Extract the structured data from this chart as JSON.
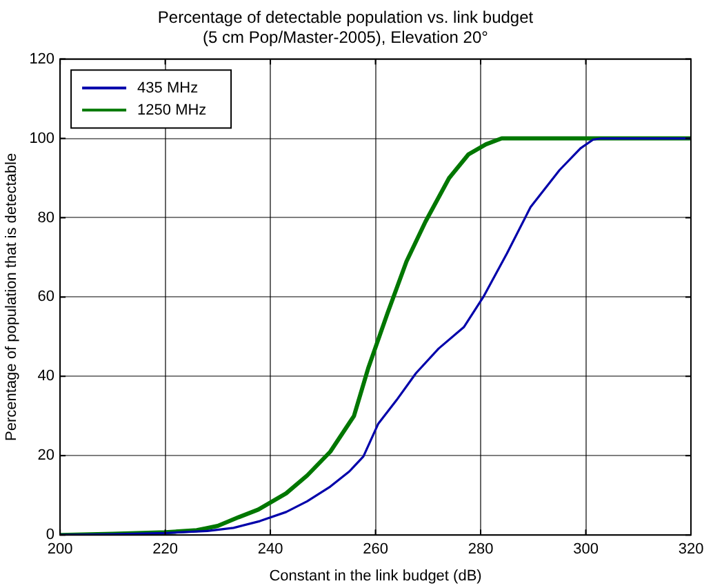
{
  "chart_data": {
    "type": "line",
    "title": [
      "Percentage of detectable population vs. link budget",
      "(5 cm Pop/Master-2005), Elevation 20°"
    ],
    "xlabel": "Constant in the link budget (dB)",
    "ylabel": "Percentage of population that is detectable",
    "xlim": [
      200,
      320
    ],
    "xticks": [
      200,
      220,
      240,
      260,
      280,
      300,
      320
    ],
    "ylim": [
      0,
      120
    ],
    "yticks": [
      0,
      20,
      40,
      60,
      80,
      100,
      120
    ],
    "grid": true,
    "legend": "top left",
    "line_style": "solid",
    "marker": "none",
    "series": [
      {
        "name": "435 MHz",
        "color": "#0000aa",
        "x": [
          200,
          210,
          220,
          228,
          233,
          238,
          243,
          247,
          251.4,
          255,
          257.7,
          260.5,
          264,
          267.7,
          272,
          276.8,
          280.5,
          285,
          289.5,
          295,
          299,
          301.4,
          303,
          310,
          320
        ],
        "values": [
          0,
          0.2,
          0.5,
          1,
          1.8,
          3.5,
          5.8,
          8.5,
          12.2,
          16,
          19.8,
          28,
          34,
          40.8,
          47,
          52.4,
          60,
          71,
          82.7,
          92,
          97.5,
          99.7,
          100,
          100,
          100
        ]
      },
      {
        "name": "1250 MHz",
        "color": "#007700",
        "x": [
          200,
          210,
          220,
          226,
          230,
          234,
          237.7,
          243,
          247,
          251.4,
          255.9,
          258.6,
          262.3,
          265.9,
          269.5,
          274,
          277.7,
          281,
          284,
          290,
          300,
          310,
          320
        ],
        "values": [
          0,
          0.3,
          0.7,
          1.2,
          2.3,
          4.5,
          6.4,
          10.5,
          15,
          21,
          30,
          42,
          56,
          69,
          79,
          90,
          96,
          98.5,
          100,
          100,
          100,
          100,
          100
        ]
      }
    ]
  }
}
